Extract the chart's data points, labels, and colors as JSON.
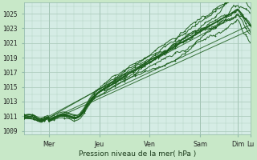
{
  "title": "Pression niveau de la mer( hPa )",
  "ylabel_values": [
    1009,
    1011,
    1013,
    1015,
    1017,
    1019,
    1021,
    1023,
    1025
  ],
  "ylim": [
    1008.5,
    1026.5
  ],
  "xlim": [
    0,
    270
  ],
  "xtick_positions": [
    30,
    90,
    150,
    210,
    255,
    270
  ],
  "xtick_labels": [
    "Mer",
    "Jeu",
    "Ven",
    "Sam",
    "Dim",
    "Lu"
  ],
  "bg_color": "#c8e8c8",
  "plot_bg_color": "#d5ece5",
  "grid_color": "#a8c8b8",
  "line_color_dark": "#1a5c1a",
  "vline_color": "#90b8a8"
}
